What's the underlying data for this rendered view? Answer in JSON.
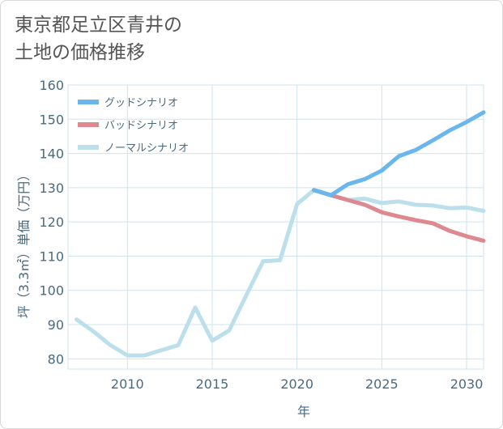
{
  "title_lines": [
    "東京都足立区青井の",
    "土地の価格推移"
  ],
  "colors": {
    "good": "#6ab7ee",
    "bad": "#de8890",
    "normal": "#bcdfec",
    "grid": "#cfe3ec",
    "axis_text": "#4a6a80",
    "frame": "#d8d8d8"
  },
  "chart_data": {
    "type": "line",
    "title": "東京都足立区青井の土地の価格推移",
    "xlabel": "年",
    "ylabel": "坪（3.3㎡）単価（万円）",
    "xlim": [
      2006.5,
      2031
    ],
    "ylim": [
      77,
      160
    ],
    "xticks": [
      2010,
      2015,
      2020,
      2025,
      2030
    ],
    "yticks": [
      80,
      90,
      100,
      110,
      120,
      130,
      140,
      150,
      160
    ],
    "grid": true,
    "legend_position": "top-left",
    "series": [
      {
        "name": "グッドシナリオ",
        "color_key": "good",
        "points": [
          [
            2021,
            129.3
          ],
          [
            2022,
            127.8
          ],
          [
            2023,
            131.0
          ],
          [
            2024,
            132.5
          ],
          [
            2025,
            135.0
          ],
          [
            2026,
            139.2
          ],
          [
            2027,
            141.0
          ],
          [
            2028,
            143.8
          ],
          [
            2029,
            146.7
          ],
          [
            2030,
            149.2
          ],
          [
            2031,
            152.0
          ]
        ]
      },
      {
        "name": "バッドシナリオ",
        "color_key": "bad",
        "points": [
          [
            2021,
            129.3
          ],
          [
            2022,
            127.8
          ],
          [
            2023,
            126.4
          ],
          [
            2024,
            125.0
          ],
          [
            2025,
            122.8
          ],
          [
            2026,
            121.6
          ],
          [
            2027,
            120.5
          ],
          [
            2028,
            119.6
          ],
          [
            2029,
            117.4
          ],
          [
            2030,
            115.8
          ],
          [
            2031,
            114.5
          ]
        ]
      },
      {
        "name": "ノーマルシナリオ",
        "color_key": "normal",
        "points": [
          [
            2007,
            91.5
          ],
          [
            2008,
            88.0
          ],
          [
            2009,
            84.0
          ],
          [
            2010,
            81.0
          ],
          [
            2011,
            81.0
          ],
          [
            2012,
            82.5
          ],
          [
            2013,
            84.0
          ],
          [
            2014,
            95.0
          ],
          [
            2015,
            85.3
          ],
          [
            2016,
            88.3
          ],
          [
            2017,
            98.5
          ],
          [
            2018,
            108.5
          ],
          [
            2019,
            108.8
          ],
          [
            2020,
            125.2
          ],
          [
            2021,
            129.3
          ],
          [
            2022,
            127.8
          ],
          [
            2023,
            126.4
          ],
          [
            2024,
            126.8
          ],
          [
            2025,
            125.5
          ],
          [
            2026,
            126.0
          ],
          [
            2027,
            125.0
          ],
          [
            2028,
            124.8
          ],
          [
            2029,
            124.0
          ],
          [
            2030,
            124.2
          ],
          [
            2031,
            123.2
          ]
        ]
      }
    ]
  }
}
